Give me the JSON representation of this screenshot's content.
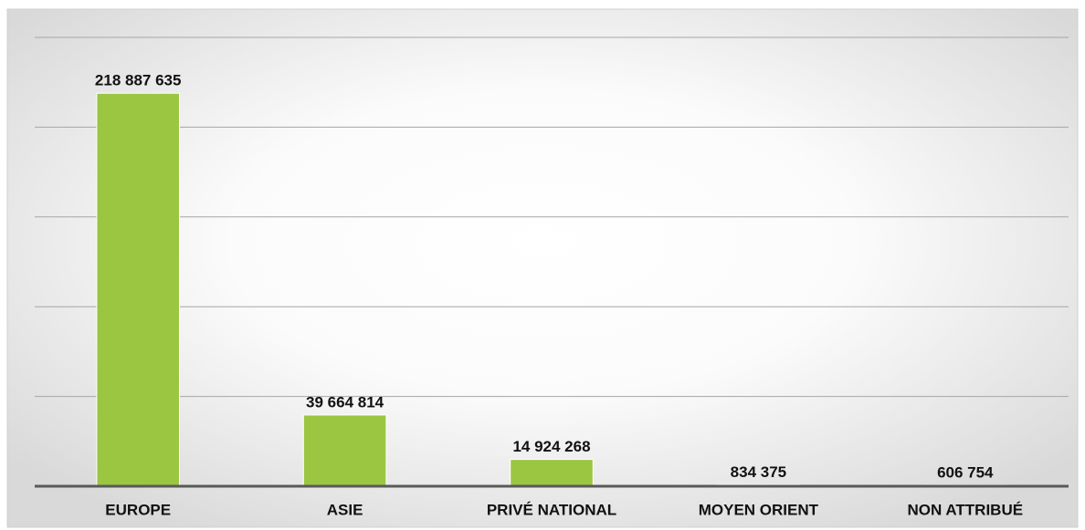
{
  "chart_data": {
    "type": "bar",
    "categories": [
      "EUROPE",
      "ASIE",
      "PRIVÉ NATIONAL",
      "MOYEN ORIENT",
      "NON ATTRIBUÉ"
    ],
    "values": [
      218887635,
      39664814,
      14924268,
      834375,
      606754
    ],
    "value_labels": [
      "218 887 635",
      "39 664 814",
      "14 924 268",
      "834 375",
      "606 754"
    ],
    "color": "#9bc641",
    "ylim": [
      0,
      250000000
    ],
    "yticks": [
      0,
      50000000,
      100000000,
      150000000,
      200000000,
      250000000
    ],
    "grid": true
  }
}
